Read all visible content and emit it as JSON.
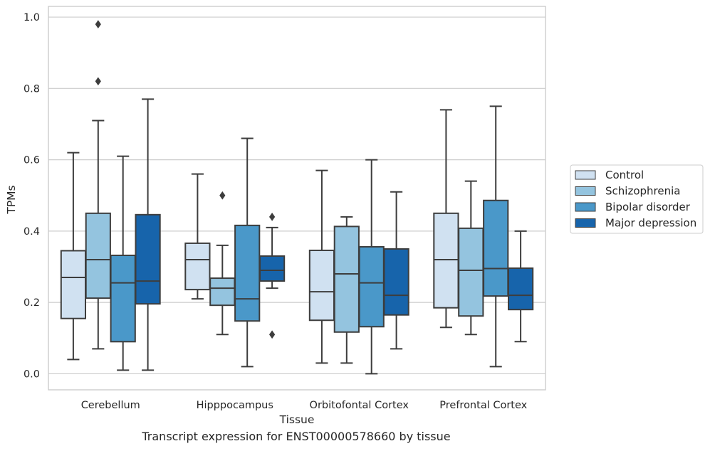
{
  "chart_data": {
    "type": "box",
    "xlabel": "Tissue",
    "ylabel": "TPMs",
    "caption": "Transcript expression for ENST00000578660 by tissue",
    "ylim": [
      -0.045,
      1.03
    ],
    "y_ticks": [
      0.0,
      0.2,
      0.4,
      0.6,
      0.8,
      1.0
    ],
    "grid": true,
    "legend_position": "right",
    "categories": [
      "Cerebellum",
      "Hipppocampus",
      "Orbitofontal Cortex",
      "Prefrontal Cortex"
    ],
    "series": [
      {
        "name": "Control",
        "color": "#d0e1f1",
        "boxes": [
          {
            "whislo": 0.04,
            "q1": 0.155,
            "med": 0.27,
            "q3": 0.345,
            "whishi": 0.62,
            "fliers": []
          },
          {
            "whislo": 0.21,
            "q1": 0.236,
            "med": 0.32,
            "q3": 0.366,
            "whishi": 0.56,
            "fliers": []
          },
          {
            "whislo": 0.03,
            "q1": 0.15,
            "med": 0.23,
            "q3": 0.346,
            "whishi": 0.57,
            "fliers": []
          },
          {
            "whislo": 0.13,
            "q1": 0.185,
            "med": 0.32,
            "q3": 0.45,
            "whishi": 0.74,
            "fliers": []
          }
        ]
      },
      {
        "name": "Schizophrenia",
        "color": "#94c4df",
        "boxes": [
          {
            "whislo": 0.07,
            "q1": 0.212,
            "med": 0.32,
            "q3": 0.45,
            "whishi": 0.71,
            "fliers": [
              0.82,
              0.98
            ]
          },
          {
            "whislo": 0.11,
            "q1": 0.192,
            "med": 0.24,
            "q3": 0.268,
            "whishi": 0.36,
            "fliers": [
              0.5
            ]
          },
          {
            "whislo": 0.03,
            "q1": 0.117,
            "med": 0.28,
            "q3": 0.413,
            "whishi": 0.44,
            "fliers": []
          },
          {
            "whislo": 0.11,
            "q1": 0.162,
            "med": 0.29,
            "q3": 0.408,
            "whishi": 0.54,
            "fliers": []
          }
        ]
      },
      {
        "name": "Bipolar disorder",
        "color": "#4a98c9",
        "boxes": [
          {
            "whislo": 0.01,
            "q1": 0.09,
            "med": 0.255,
            "q3": 0.332,
            "whishi": 0.61,
            "fliers": []
          },
          {
            "whislo": 0.02,
            "q1": 0.148,
            "med": 0.21,
            "q3": 0.416,
            "whishi": 0.66,
            "fliers": []
          },
          {
            "whislo": 0.0,
            "q1": 0.132,
            "med": 0.255,
            "q3": 0.356,
            "whishi": 0.6,
            "fliers": []
          },
          {
            "whislo": 0.02,
            "q1": 0.218,
            "med": 0.295,
            "q3": 0.486,
            "whishi": 0.75,
            "fliers": []
          }
        ]
      },
      {
        "name": "Major depression",
        "color": "#1764ab",
        "boxes": [
          {
            "whislo": 0.01,
            "q1": 0.196,
            "med": 0.26,
            "q3": 0.446,
            "whishi": 0.77,
            "fliers": []
          },
          {
            "whislo": 0.24,
            "q1": 0.26,
            "med": 0.29,
            "q3": 0.33,
            "whishi": 0.41,
            "fliers": [
              0.11,
              0.44
            ]
          },
          {
            "whislo": 0.07,
            "q1": 0.165,
            "med": 0.22,
            "q3": 0.35,
            "whishi": 0.51,
            "fliers": []
          },
          {
            "whislo": 0.09,
            "q1": 0.18,
            "med": 0.22,
            "q3": 0.296,
            "whishi": 0.4,
            "fliers": []
          }
        ]
      }
    ]
  }
}
